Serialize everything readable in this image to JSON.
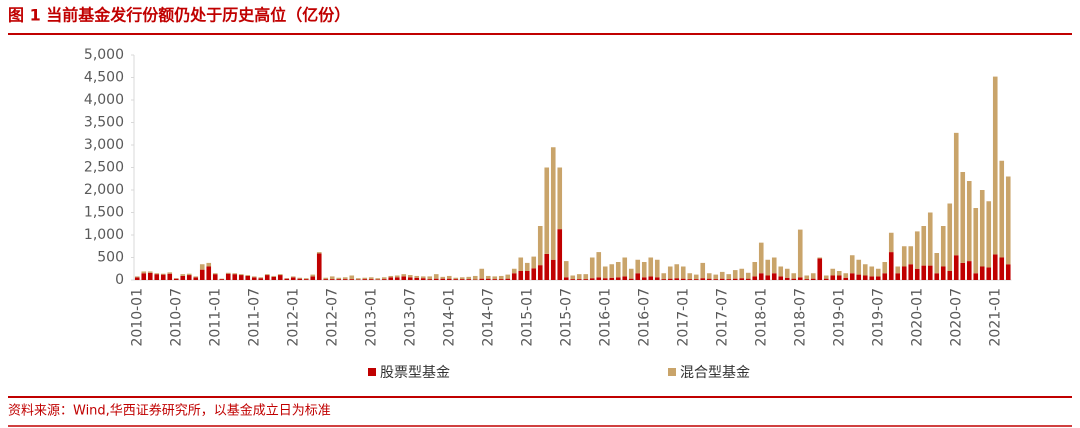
{
  "chart_data": {
    "type": "stacked-bar",
    "title": "图 1  当前基金发行份额仍处于历史高位（亿份）",
    "source": "资料来源：Wind,华西证券研究所，以基金成立日为标准",
    "categories": [
      "2010-01",
      null,
      null,
      null,
      null,
      null,
      "2010-07",
      null,
      null,
      null,
      null,
      null,
      "2011-01",
      null,
      null,
      null,
      null,
      null,
      "2011-07",
      null,
      null,
      null,
      null,
      null,
      "2012-01",
      null,
      null,
      null,
      null,
      null,
      "2012-07",
      null,
      null,
      null,
      null,
      null,
      "2013-01",
      null,
      null,
      null,
      null,
      null,
      "2013-07",
      null,
      null,
      null,
      null,
      null,
      "2014-01",
      null,
      null,
      null,
      null,
      null,
      "2014-07",
      null,
      null,
      null,
      null,
      null,
      "2015-01",
      null,
      null,
      null,
      null,
      null,
      "2015-07",
      null,
      null,
      null,
      null,
      null,
      "2016-01",
      null,
      null,
      null,
      null,
      null,
      "2016-07",
      null,
      null,
      null,
      null,
      null,
      "2017-01",
      null,
      null,
      null,
      null,
      null,
      "2017-07",
      null,
      null,
      null,
      null,
      null,
      "2018-01",
      null,
      null,
      null,
      null,
      null,
      "2018-07",
      null,
      null,
      null,
      null,
      null,
      "2019-01",
      null,
      null,
      null,
      null,
      null,
      "2019-07",
      null,
      null,
      null,
      null,
      null,
      "2020-01",
      null,
      null,
      null,
      null,
      null,
      "2020-07",
      null,
      null,
      null,
      null,
      null,
      "2021-01",
      null,
      null
    ],
    "series": [
      {
        "name": "股票型基金",
        "color": "#c00000",
        "values": [
          60,
          150,
          160,
          130,
          120,
          140,
          30,
          90,
          110,
          60,
          230,
          300,
          130,
          20,
          140,
          130,
          110,
          90,
          60,
          40,
          110,
          70,
          110,
          30,
          60,
          30,
          20,
          80,
          590,
          20,
          20,
          20,
          20,
          20,
          10,
          20,
          20,
          10,
          20,
          60,
          60,
          80,
          60,
          50,
          40,
          20,
          30,
          30,
          30,
          20,
          20,
          20,
          10,
          30,
          30,
          20,
          20,
          30,
          150,
          200,
          200,
          260,
          330,
          580,
          450,
          1130,
          60,
          20,
          20,
          20,
          40,
          60,
          40,
          50,
          60,
          80,
          30,
          150,
          60,
          80,
          60,
          20,
          30,
          40,
          30,
          20,
          20,
          40,
          30,
          20,
          30,
          20,
          30,
          40,
          30,
          80,
          150,
          100,
          150,
          80,
          50,
          30,
          60,
          20,
          30,
          480,
          30,
          100,
          100,
          50,
          150,
          120,
          100,
          80,
          80,
          150,
          620,
          150,
          300,
          350,
          250,
          320,
          320,
          150,
          300,
          200,
          550,
          380,
          420,
          150,
          300,
          280,
          570,
          500,
          350
        ]
      },
      {
        "name": "混合型基金",
        "color": "#c9a46a",
        "values": [
          20,
          40,
          30,
          20,
          20,
          30,
          10,
          40,
          30,
          20,
          120,
          80,
          20,
          10,
          20,
          20,
          20,
          20,
          20,
          20,
          20,
          20,
          20,
          10,
          20,
          20,
          20,
          40,
          30,
          30,
          60,
          30,
          40,
          80,
          30,
          30,
          40,
          30,
          40,
          30,
          40,
          50,
          50,
          40,
          40,
          60,
          100,
          40,
          60,
          30,
          40,
          50,
          80,
          220,
          60,
          60,
          70,
          90,
          100,
          300,
          180,
          260,
          870,
          1920,
          2500,
          1370,
          360,
          80,
          110,
          110,
          460,
          560,
          260,
          300,
          340,
          420,
          220,
          300,
          340,
          420,
          390,
          130,
          270,
          310,
          270,
          130,
          100,
          340,
          120,
          100,
          150,
          110,
          190,
          210,
          130,
          320,
          680,
          350,
          350,
          220,
          200,
          120,
          1060,
          80,
          120,
          20,
          70,
          150,
          100,
          100,
          400,
          330,
          250,
          220,
          170,
          250,
          430,
          150,
          450,
          400,
          830,
          880,
          1180,
          450,
          900,
          1500,
          2720,
          2020,
          1780,
          1450,
          1700,
          1470,
          3950,
          2150,
          1950
        ]
      }
    ],
    "ylim": [
      0,
      5000
    ],
    "yticks": [
      0,
      500,
      {
        "value": 1000,
        "label": "1,000"
      },
      {
        "value": 1500,
        "label": "1,500"
      },
      {
        "value": 2000,
        "label": "2,000"
      },
      {
        "value": 2500,
        "label": "2,500"
      },
      {
        "value": 3000,
        "label": "3,000"
      },
      {
        "value": 3500,
        "label": "3,500"
      },
      {
        "value": 4000,
        "label": "4,000"
      },
      {
        "value": 4500,
        "label": "4,500"
      },
      {
        "value": 5000,
        "label": "5,000"
      }
    ],
    "grid": false,
    "legend": "bottom"
  }
}
